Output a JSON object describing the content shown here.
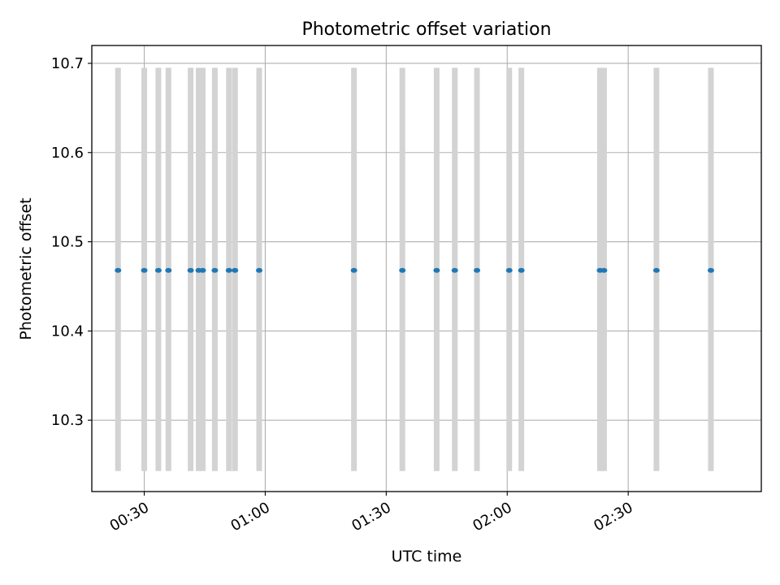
{
  "chart_data": {
    "type": "scatter",
    "title": "Photometric offset variation",
    "xlabel": "UTC time",
    "ylabel": "Photometric offset",
    "x_unit": "UTC time (HH:MM)",
    "xlim": [
      "00:17:00",
      "03:03:00"
    ],
    "ylim": [
      10.22,
      10.72
    ],
    "x_ticks": [
      "00:30",
      "01:00",
      "01:30",
      "02:00",
      "02:30"
    ],
    "y_ticks": [
      10.3,
      10.4,
      10.5,
      10.6,
      10.7
    ],
    "grid": true,
    "points": {
      "color": "#1f77b4",
      "x": [
        "00:23:30",
        "00:30:00",
        "00:33:30",
        "00:36:00",
        "00:41:30",
        "00:43:30",
        "00:44:30",
        "00:47:30",
        "00:51:00",
        "00:52:30",
        "00:58:30",
        "01:22:00",
        "01:34:00",
        "01:42:30",
        "01:47:00",
        "01:52:30",
        "02:00:30",
        "02:03:30",
        "02:23:00",
        "02:24:00",
        "02:37:00",
        "02:50:30"
      ],
      "y": [
        10.468,
        10.468,
        10.468,
        10.468,
        10.468,
        10.468,
        10.468,
        10.468,
        10.468,
        10.468,
        10.468,
        10.468,
        10.468,
        10.468,
        10.468,
        10.468,
        10.468,
        10.468,
        10.468,
        10.468,
        10.468,
        10.468
      ]
    },
    "vertical_bands": {
      "color": "#d3d3d3",
      "y_range": [
        10.243,
        10.695
      ],
      "x": [
        "00:23:30",
        "00:30:00",
        "00:33:30",
        "00:36:00",
        "00:41:30",
        "00:43:30",
        "00:44:30",
        "00:47:30",
        "00:51:00",
        "00:52:30",
        "00:58:30",
        "01:22:00",
        "01:34:00",
        "01:42:30",
        "01:47:00",
        "01:52:30",
        "02:00:30",
        "02:03:30",
        "02:23:00",
        "02:24:00",
        "02:37:00",
        "02:50:30"
      ]
    },
    "colors": {
      "axes": "#000000",
      "grid": "#b0b0b0"
    }
  }
}
